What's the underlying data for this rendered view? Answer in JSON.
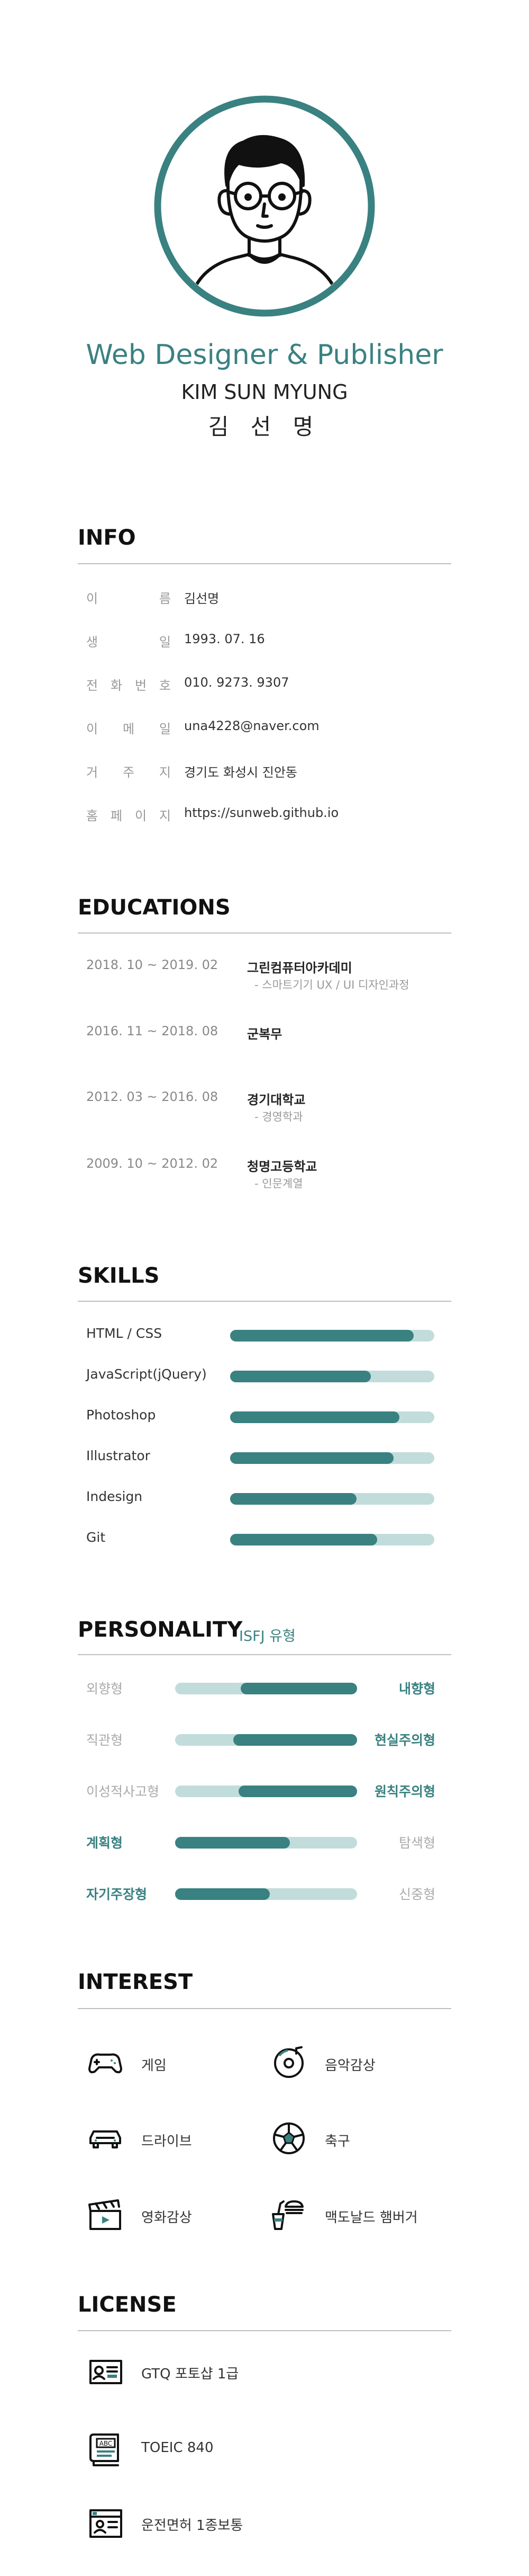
{
  "colors": {
    "accent": "#3a8181",
    "track": "#c2dcdc",
    "divider": "#bfbfbf"
  },
  "header": {
    "role": "Web Designer & Publisher",
    "name_en": "KIM SUN MYUNG",
    "name_ko": "김 선 명"
  },
  "info": {
    "title": "INFO",
    "rows": [
      {
        "label": "이름",
        "value": "김선명"
      },
      {
        "label": "생일",
        "value": "1993. 07. 16"
      },
      {
        "label": "전화번호",
        "value": "010. 9273. 9307"
      },
      {
        "label": "이메일",
        "value": "una4228@naver.com"
      },
      {
        "label": "거주지",
        "value": "경기도 화성시 진안동"
      },
      {
        "label": "홈페이지",
        "value": "https://sunweb.github.io"
      }
    ]
  },
  "educations": {
    "title": "EDUCATIONS",
    "rows": [
      {
        "date": "2018. 10 ~ 2019. 02",
        "school": "그린컴퓨터아카데미",
        "detail": "- 스마트기기 UX / UI 디자인과정"
      },
      {
        "date": "2016. 11 ~ 2018. 08",
        "school": "군복무",
        "detail": ""
      },
      {
        "date": "2012. 03 ~ 2016. 08",
        "school": "경기대학교",
        "detail": "- 경영학과"
      },
      {
        "date": "2009. 10 ~ 2012. 02",
        "school": "청명고등학교",
        "detail": "- 인문계열"
      }
    ]
  },
  "skills": {
    "title": "SKILLS",
    "items": [
      {
        "name": "HTML / CSS",
        "level": 0.9
      },
      {
        "name": "JavaScript(jQuery)",
        "level": 0.69
      },
      {
        "name": "Photoshop",
        "level": 0.83
      },
      {
        "name": "Illustrator",
        "level": 0.8
      },
      {
        "name": "Indesign",
        "level": 0.62
      },
      {
        "name": "Git",
        "level": 0.72
      }
    ]
  },
  "personality": {
    "title": "PERSONALITY",
    "type": "ISFJ 유형",
    "items": [
      {
        "left": "외향형",
        "right": "내향형",
        "side": "right",
        "level": 0.64
      },
      {
        "left": "직관형",
        "right": "현실주의형",
        "side": "right",
        "level": 0.68
      },
      {
        "left": "이성적사고형",
        "right": "원칙주의형",
        "side": "right",
        "level": 0.65
      },
      {
        "left": "계획형",
        "right": "탐색형",
        "side": "left",
        "level": 0.63
      },
      {
        "left": "자기주장형",
        "right": "신중형",
        "side": "left",
        "level": 0.52
      }
    ]
  },
  "interest": {
    "title": "INTEREST",
    "items": [
      {
        "label": "게임",
        "icon": "gamepad-icon"
      },
      {
        "label": "음악감상",
        "icon": "music-disc-icon"
      },
      {
        "label": "드라이브",
        "icon": "car-icon"
      },
      {
        "label": "축구",
        "icon": "soccer-ball-icon"
      },
      {
        "label": "영화감상",
        "icon": "clapperboard-icon"
      },
      {
        "label": "맥도날드 햄버거",
        "icon": "burger-drink-icon"
      }
    ]
  },
  "license": {
    "title": "LICENSE",
    "items": [
      {
        "label": "GTQ 포토샵 1급",
        "icon": "certificate-card-icon"
      },
      {
        "label": "TOEIC  840",
        "icon": "abc-book-icon"
      },
      {
        "label": "운전면허 1종보통",
        "icon": "driver-license-icon"
      }
    ]
  }
}
